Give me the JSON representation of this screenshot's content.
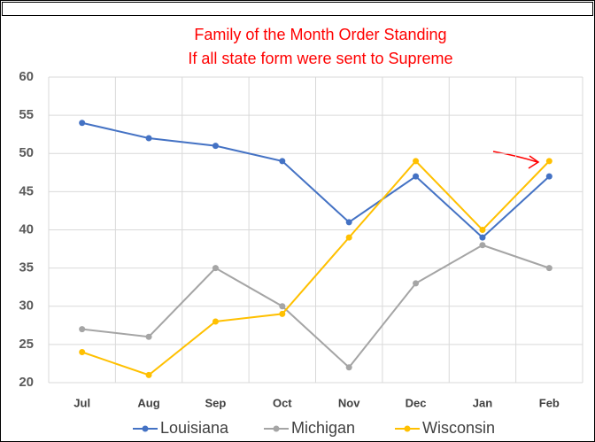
{
  "chart_data": {
    "type": "line",
    "title": "Family of the Month Order Standing",
    "subtitle": "If all state form were sent to Supreme",
    "categories": [
      "Jul",
      "Aug",
      "Sep",
      "Oct",
      "Nov",
      "Dec",
      "Jan",
      "Feb"
    ],
    "series": [
      {
        "name": "Louisiana",
        "color": "#4472c4",
        "values": [
          54,
          52,
          51,
          49,
          41,
          47,
          39,
          47
        ]
      },
      {
        "name": "Michigan",
        "color": "#a5a5a5",
        "values": [
          27,
          26,
          35,
          30,
          22,
          33,
          38,
          35
        ]
      },
      {
        "name": "Wisconsin",
        "color": "#ffc000",
        "values": [
          24,
          21,
          28,
          29,
          39,
          49,
          40,
          49
        ]
      }
    ],
    "ylim": [
      20,
      60
    ],
    "yticks": [
      20,
      25,
      30,
      35,
      40,
      45,
      50,
      55,
      60
    ],
    "grid": true,
    "legend": "bottom"
  }
}
